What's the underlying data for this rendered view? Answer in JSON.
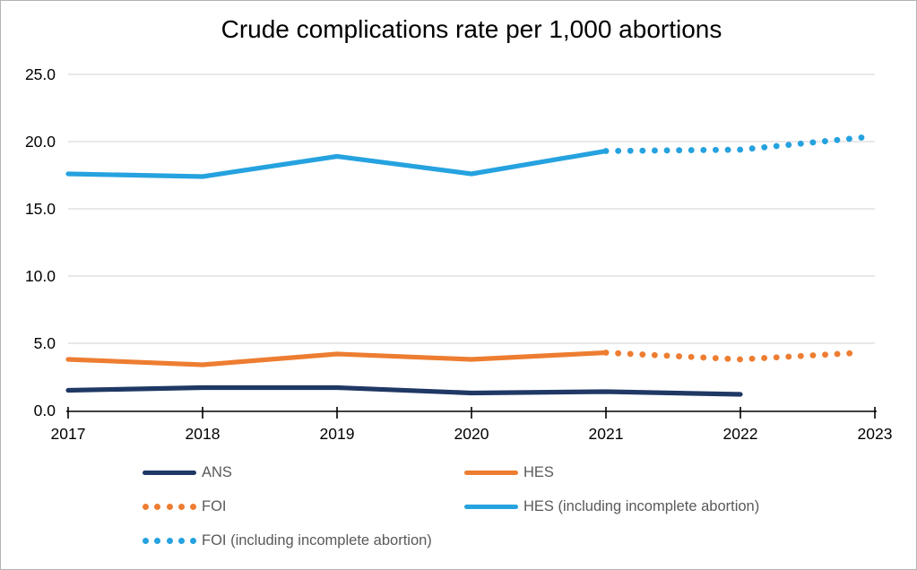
{
  "chart_data": {
    "type": "line",
    "title": "Crude complications rate per 1,000 abortions",
    "xlabel": "",
    "ylabel": "",
    "xlim": [
      2017,
      2023
    ],
    "ylim": [
      0,
      25
    ],
    "x_ticks": [
      "2017",
      "2018",
      "2019",
      "2020",
      "2021",
      "2022",
      "2023"
    ],
    "y_ticks": [
      "0.0",
      "5.0",
      "10.0",
      "15.0",
      "20.0",
      "25.0"
    ],
    "grid": "horizontal",
    "legend_position": "bottom, two columns",
    "colors": {
      "navy": "#1F3864",
      "orange": "#ED7D31",
      "light_blue": "#25A2DF",
      "gridline": "#D9D9D9",
      "axis_line": "#000000",
      "axis_text": "#000000",
      "legend_text": "#595959"
    },
    "series": [
      {
        "name": "ANS",
        "color": "#1F3864",
        "style": "solid",
        "x": [
          2017,
          2018,
          2019,
          2020,
          2021,
          2022
        ],
        "values": [
          1.5,
          1.7,
          1.7,
          1.3,
          1.4,
          1.2
        ]
      },
      {
        "name": "HES",
        "color": "#ED7D31",
        "style": "solid",
        "x": [
          2017,
          2018,
          2019,
          2020,
          2021
        ],
        "values": [
          3.8,
          3.4,
          4.2,
          3.8,
          4.3
        ]
      },
      {
        "name": "FOI",
        "color": "#ED7D31",
        "style": "dotted",
        "x": [
          2021,
          2022,
          2022.9
        ],
        "values": [
          4.3,
          3.8,
          4.3
        ]
      },
      {
        "name": "HES (including incomplete abortion)",
        "color": "#25A2DF",
        "style": "solid",
        "x": [
          2017,
          2018,
          2019,
          2020,
          2021
        ],
        "values": [
          17.6,
          17.4,
          18.9,
          17.6,
          19.3
        ]
      },
      {
        "name": "FOI (including incomplete abortion)",
        "color": "#25A2DF",
        "style": "dotted",
        "x": [
          2021,
          2022,
          2022.9
        ],
        "values": [
          19.3,
          19.4,
          20.3
        ]
      }
    ],
    "legend": [
      {
        "label": "ANS",
        "color": "#1F3864",
        "style": "solid"
      },
      {
        "label": "HES",
        "color": "#ED7D31",
        "style": "solid"
      },
      {
        "label": "FOI",
        "color": "#ED7D31",
        "style": "dotted"
      },
      {
        "label": "HES (including incomplete abortion)",
        "color": "#25A2DF",
        "style": "solid"
      },
      {
        "label": "FOI (including incomplete abortion)",
        "color": "#25A2DF",
        "style": "dotted"
      }
    ]
  }
}
